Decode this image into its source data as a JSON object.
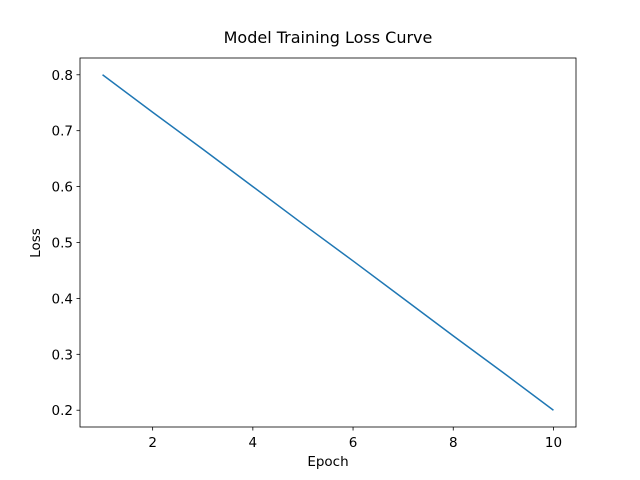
{
  "chart_data": {
    "type": "line",
    "title": "Model Training Loss Curve",
    "x_label": "Epoch",
    "y_label": "Loss",
    "x": [
      1,
      2,
      3,
      4,
      5,
      6,
      7,
      8,
      9,
      10
    ],
    "series": [
      {
        "name": "Loss",
        "color": "#1f77b4",
        "values": [
          0.8,
          0.733,
          0.667,
          0.6,
          0.533,
          0.467,
          0.4,
          0.333,
          0.267,
          0.2
        ]
      }
    ],
    "xlim": [
      0.55,
      10.45
    ],
    "ylim": [
      0.17,
      0.83
    ],
    "xticks": [
      2,
      4,
      6,
      8,
      10
    ],
    "yticks": [
      0.2,
      0.3,
      0.4,
      0.5,
      0.6,
      0.7,
      0.8
    ],
    "grid": false
  }
}
